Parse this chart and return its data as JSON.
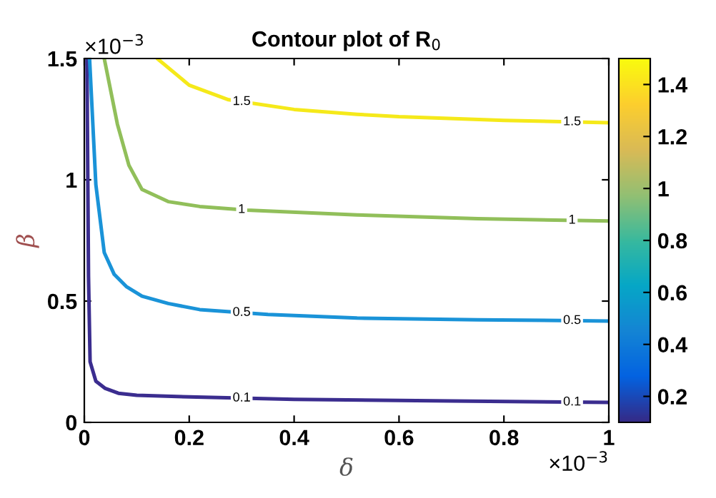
{
  "chart_data": {
    "type": "line",
    "title": "Contour plot of R$_{0}$",
    "xlabel": "δ",
    "ylabel": "β",
    "annotations": [
      "×10$^{−3}$",
      "×10$^{−3}$"
    ],
    "xlim": [
      0,
      1
    ],
    "ylim": [
      0,
      1.5
    ],
    "xticks": [
      0,
      0.2,
      0.4,
      0.6,
      0.8,
      1
    ],
    "yticks": [
      0,
      0.5,
      1,
      1.5
    ],
    "clim": [
      0.1,
      1.5
    ],
    "cticks": [
      0.2,
      0.4,
      0.6,
      0.8,
      1,
      1.2,
      1.4
    ],
    "grid": false,
    "legend": false,
    "series": [
      {
        "name": "0.1",
        "color": "#3b2d8f",
        "x": [
          0.005,
          0.008,
          0.011,
          0.022,
          0.04,
          0.065,
          0.1,
          0.2,
          0.4,
          0.7,
          1
        ],
        "values": [
          1.5,
          0.6,
          0.25,
          0.17,
          0.14,
          0.12,
          0.112,
          0.105,
          0.095,
          0.088,
          0.082
        ]
      },
      {
        "name": "0.5",
        "color": "#1a93d8",
        "x": [
          0.01,
          0.022,
          0.038,
          0.057,
          0.08,
          0.11,
          0.16,
          0.22,
          0.35,
          0.52,
          0.75,
          1
        ],
        "values": [
          1.5,
          0.98,
          0.7,
          0.61,
          0.56,
          0.52,
          0.49,
          0.465,
          0.445,
          0.43,
          0.423,
          0.418
        ]
      },
      {
        "name": "1",
        "color": "#91bf5a",
        "x": [
          0.038,
          0.063,
          0.085,
          0.11,
          0.16,
          0.22,
          0.31,
          0.52,
          0.75,
          1
        ],
        "values": [
          1.5,
          1.23,
          1.06,
          0.96,
          0.91,
          0.89,
          0.875,
          0.855,
          0.84,
          0.83
        ]
      },
      {
        "name": "1.5",
        "color": "#f5e91a",
        "x": [
          0.139,
          0.2,
          0.275,
          0.4,
          0.52,
          0.6,
          0.8,
          1
        ],
        "values": [
          1.5,
          1.39,
          1.33,
          1.29,
          1.27,
          1.26,
          1.245,
          1.235
        ]
      }
    ]
  }
}
